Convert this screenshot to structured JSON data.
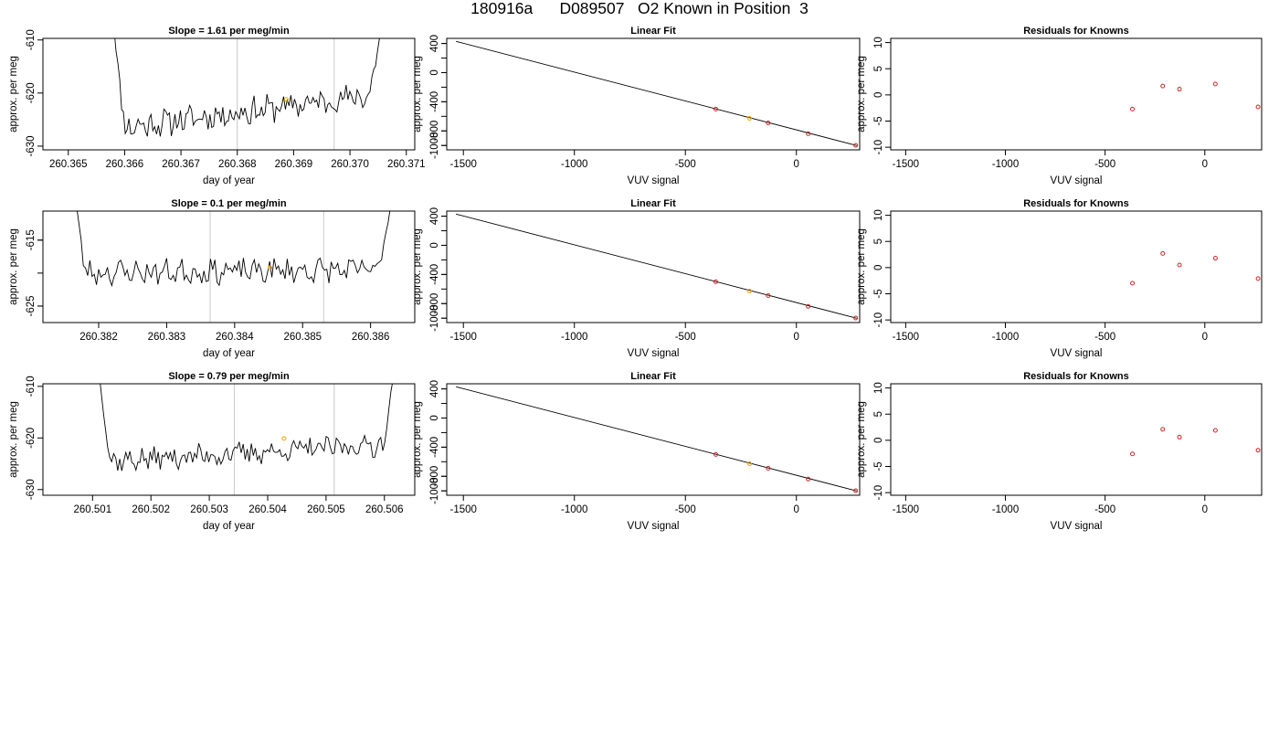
{
  "title": "180916a      D089507   O2 Known in Position  3",
  "chart_data": [
    {
      "type": "line",
      "title": "Slope =  1.61  per meg/min",
      "xlabel": "day of year",
      "ylabel": "approx. per meg",
      "xlim": [
        260.36455,
        260.37115
      ],
      "ylim": [
        -630.7,
        -609.7
      ],
      "xticks": [
        260.365,
        260.366,
        260.367,
        260.368,
        260.369,
        260.37,
        260.371
      ],
      "yticks": [
        -630,
        -620,
        -610
      ],
      "vlines": [
        260.368,
        260.36972
      ],
      "marker": {
        "x": 260.36887,
        "y": -621.2,
        "color": "#ffa500"
      },
      "trace": {
        "start": 260.36575,
        "end": 260.37065,
        "drop": 260.366,
        "rise": 260.37035,
        "base": -626.5,
        "slope": 1.61,
        "noise": 2.2,
        "seed": 11
      }
    },
    {
      "type": "scatter",
      "title": "Linear Fit",
      "xlabel": "VUV signal",
      "ylabel": "approx. per meg",
      "xlim": [
        -1575,
        285
      ],
      "ylim": [
        -1060,
        470
      ],
      "xticks": [
        -1500,
        -1000,
        -500,
        0
      ],
      "yticks": [
        -1000,
        -800,
        -400,
        0,
        400
      ],
      "yminor": [
        -1000,
        -800,
        -600,
        -400,
        -200,
        0,
        200,
        400
      ],
      "line": {
        "x": [
          -1533,
          272
        ],
        "y": [
          429,
          -1001
        ]
      },
      "points": [
        {
          "x": -363,
          "y": -500,
          "color": "#cd2626"
        },
        {
          "x": -211,
          "y": -628,
          "color": "#ffa500"
        },
        {
          "x": -127,
          "y": -690,
          "color": "#cd2626"
        },
        {
          "x": 53,
          "y": -838,
          "color": "#cd2626"
        },
        {
          "x": 267,
          "y": -998,
          "color": "#cd2626"
        }
      ]
    },
    {
      "type": "scatter",
      "title": "Residuals for Knowns",
      "xlabel": "VUV signal",
      "ylabel": "approx. per meg",
      "xlim": [
        -1575,
        285
      ],
      "ylim": [
        -10.5,
        10.8
      ],
      "xticks": [
        -1500,
        -1000,
        -500,
        0
      ],
      "yticks": [
        -10,
        -5,
        0,
        5,
        10
      ],
      "points": [
        {
          "x": -363,
          "y": -2.7,
          "color": "#cd2626"
        },
        {
          "x": -211,
          "y": 1.7,
          "color": "#cd2626"
        },
        {
          "x": -127,
          "y": 1.1,
          "color": "#cd2626"
        },
        {
          "x": 53,
          "y": 2.1,
          "color": "#cd2626"
        },
        {
          "x": 267,
          "y": -2.3,
          "color": "#cd2626"
        }
      ]
    },
    {
      "type": "line",
      "title": "Slope =  0.1  per meg/min",
      "xlabel": "day of year",
      "ylabel": "approx. per meg",
      "xlim": [
        260.38118,
        260.38665
      ],
      "ylim": [
        -627.5,
        -610.6
      ],
      "xticks": [
        260.382,
        260.383,
        260.384,
        260.385,
        260.386
      ],
      "yticks": [
        -625,
        -615
      ],
      "yminor": [
        -625,
        -620,
        -615
      ],
      "vlines": [
        260.38364,
        260.38531
      ],
      "marker": {
        "x": 260.38452,
        "y": -619.2,
        "color": "#ffa500"
      },
      "trace": {
        "start": 260.38158,
        "end": 260.38642,
        "drop": 260.3818,
        "rise": 260.38612,
        "base": -619.9,
        "slope": 0.1,
        "noise": 1.6,
        "seed": 23
      }
    },
    {
      "type": "scatter",
      "title": "Linear Fit",
      "xlabel": "VUV signal",
      "ylabel": "approx. per meg",
      "xlim": [
        -1575,
        285
      ],
      "ylim": [
        -1060,
        470
      ],
      "xticks": [
        -1500,
        -1000,
        -500,
        0
      ],
      "yticks": [
        -1000,
        -800,
        -400,
        0,
        400
      ],
      "yminor": [
        -1000,
        -800,
        -600,
        -400,
        -200,
        0,
        200,
        400
      ],
      "line": {
        "x": [
          -1533,
          272
        ],
        "y": [
          429,
          -1001
        ]
      },
      "points": [
        {
          "x": -363,
          "y": -500,
          "color": "#cd2626"
        },
        {
          "x": -211,
          "y": -628,
          "color": "#ffa500"
        },
        {
          "x": -127,
          "y": -690,
          "color": "#cd2626"
        },
        {
          "x": 53,
          "y": -838,
          "color": "#cd2626"
        },
        {
          "x": 267,
          "y": -998,
          "color": "#cd2626"
        }
      ]
    },
    {
      "type": "scatter",
      "title": "Residuals for Knowns",
      "xlabel": "VUV signal",
      "ylabel": "approx. per meg",
      "xlim": [
        -1575,
        285
      ],
      "ylim": [
        -10.5,
        10.8
      ],
      "xticks": [
        -1500,
        -1000,
        -500,
        0
      ],
      "yticks": [
        -10,
        -5,
        0,
        5,
        10
      ],
      "points": [
        {
          "x": -363,
          "y": -3.0,
          "color": "#cd2626"
        },
        {
          "x": -211,
          "y": 2.7,
          "color": "#cd2626"
        },
        {
          "x": -127,
          "y": 0.5,
          "color": "#cd2626"
        },
        {
          "x": 53,
          "y": 1.8,
          "color": "#cd2626"
        },
        {
          "x": 267,
          "y": -2.1,
          "color": "#cd2626"
        }
      ]
    },
    {
      "type": "line",
      "title": "Slope =  0.79  per meg/min",
      "xlabel": "day of year",
      "ylabel": "approx. per meg",
      "xlim": [
        260.50015,
        260.50652
      ],
      "ylim": [
        -631.1,
        -609.5
      ],
      "xticks": [
        260.501,
        260.502,
        260.503,
        260.504,
        260.505,
        260.506
      ],
      "yticks": [
        -630,
        -620,
        -610
      ],
      "vlines": [
        260.50343,
        260.50514
      ],
      "marker": {
        "x": 260.50428,
        "y": -620.1,
        "color": "#ffa500"
      },
      "trace": {
        "start": 260.50105,
        "end": 260.50625,
        "drop": 260.5013,
        "rise": 260.50598,
        "base": -624.5,
        "slope": 0.79,
        "noise": 1.9,
        "seed": 37
      }
    },
    {
      "type": "scatter",
      "title": "Linear Fit",
      "xlabel": "VUV signal",
      "ylabel": "approx. per meg",
      "xlim": [
        -1575,
        285
      ],
      "ylim": [
        -1060,
        470
      ],
      "xticks": [
        -1500,
        -1000,
        -500,
        0
      ],
      "yticks": [
        -1000,
        -800,
        -400,
        0,
        400
      ],
      "yminor": [
        -1000,
        -800,
        -600,
        -400,
        -200,
        0,
        200,
        400
      ],
      "line": {
        "x": [
          -1533,
          272
        ],
        "y": [
          429,
          -1001
        ]
      },
      "points": [
        {
          "x": -363,
          "y": -500,
          "color": "#cd2626"
        },
        {
          "x": -211,
          "y": -628,
          "color": "#ffa500"
        },
        {
          "x": -127,
          "y": -690,
          "color": "#cd2626"
        },
        {
          "x": 53,
          "y": -838,
          "color": "#cd2626"
        },
        {
          "x": 267,
          "y": -998,
          "color": "#cd2626"
        }
      ]
    },
    {
      "type": "scatter",
      "title": "Residuals for Knowns",
      "xlabel": "VUV signal",
      "ylabel": "approx. per meg",
      "xlim": [
        -1575,
        285
      ],
      "ylim": [
        -10.5,
        10.8
      ],
      "xticks": [
        -1500,
        -1000,
        -500,
        0
      ],
      "yticks": [
        -10,
        -5,
        0,
        5,
        10
      ],
      "points": [
        {
          "x": -363,
          "y": -2.6,
          "color": "#cd2626"
        },
        {
          "x": -211,
          "y": 2.1,
          "color": "#cd2626"
        },
        {
          "x": -127,
          "y": 0.6,
          "color": "#cd2626"
        },
        {
          "x": 53,
          "y": 1.9,
          "color": "#cd2626"
        },
        {
          "x": 267,
          "y": -1.9,
          "color": "#cd2626"
        }
      ]
    }
  ]
}
